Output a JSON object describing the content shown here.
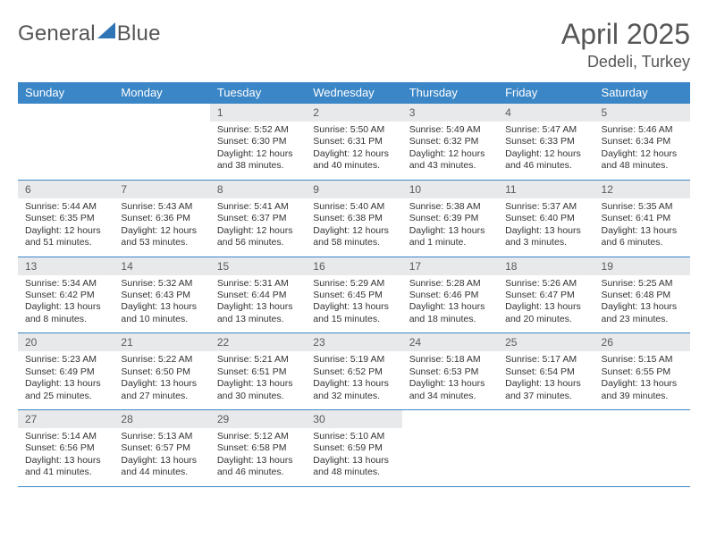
{
  "brand": {
    "name_part1": "General",
    "name_part2": "Blue",
    "mark_color": "#2f74b5"
  },
  "title": {
    "month_year": "April 2025",
    "location": "Dedeli, Turkey"
  },
  "header_bg": "#3b86c6",
  "dayhead_bg": "#e8e9ea",
  "row_border": "#3b86c6",
  "weekdays": [
    "Sunday",
    "Monday",
    "Tuesday",
    "Wednesday",
    "Thursday",
    "Friday",
    "Saturday"
  ],
  "weeks": [
    [
      {
        "n": "",
        "sunrise": "",
        "sunset": "",
        "daylight": ""
      },
      {
        "n": "",
        "sunrise": "",
        "sunset": "",
        "daylight": ""
      },
      {
        "n": "1",
        "sunrise": "Sunrise: 5:52 AM",
        "sunset": "Sunset: 6:30 PM",
        "daylight": "Daylight: 12 hours and 38 minutes."
      },
      {
        "n": "2",
        "sunrise": "Sunrise: 5:50 AM",
        "sunset": "Sunset: 6:31 PM",
        "daylight": "Daylight: 12 hours and 40 minutes."
      },
      {
        "n": "3",
        "sunrise": "Sunrise: 5:49 AM",
        "sunset": "Sunset: 6:32 PM",
        "daylight": "Daylight: 12 hours and 43 minutes."
      },
      {
        "n": "4",
        "sunrise": "Sunrise: 5:47 AM",
        "sunset": "Sunset: 6:33 PM",
        "daylight": "Daylight: 12 hours and 46 minutes."
      },
      {
        "n": "5",
        "sunrise": "Sunrise: 5:46 AM",
        "sunset": "Sunset: 6:34 PM",
        "daylight": "Daylight: 12 hours and 48 minutes."
      }
    ],
    [
      {
        "n": "6",
        "sunrise": "Sunrise: 5:44 AM",
        "sunset": "Sunset: 6:35 PM",
        "daylight": "Daylight: 12 hours and 51 minutes."
      },
      {
        "n": "7",
        "sunrise": "Sunrise: 5:43 AM",
        "sunset": "Sunset: 6:36 PM",
        "daylight": "Daylight: 12 hours and 53 minutes."
      },
      {
        "n": "8",
        "sunrise": "Sunrise: 5:41 AM",
        "sunset": "Sunset: 6:37 PM",
        "daylight": "Daylight: 12 hours and 56 minutes."
      },
      {
        "n": "9",
        "sunrise": "Sunrise: 5:40 AM",
        "sunset": "Sunset: 6:38 PM",
        "daylight": "Daylight: 12 hours and 58 minutes."
      },
      {
        "n": "10",
        "sunrise": "Sunrise: 5:38 AM",
        "sunset": "Sunset: 6:39 PM",
        "daylight": "Daylight: 13 hours and 1 minute."
      },
      {
        "n": "11",
        "sunrise": "Sunrise: 5:37 AM",
        "sunset": "Sunset: 6:40 PM",
        "daylight": "Daylight: 13 hours and 3 minutes."
      },
      {
        "n": "12",
        "sunrise": "Sunrise: 5:35 AM",
        "sunset": "Sunset: 6:41 PM",
        "daylight": "Daylight: 13 hours and 6 minutes."
      }
    ],
    [
      {
        "n": "13",
        "sunrise": "Sunrise: 5:34 AM",
        "sunset": "Sunset: 6:42 PM",
        "daylight": "Daylight: 13 hours and 8 minutes."
      },
      {
        "n": "14",
        "sunrise": "Sunrise: 5:32 AM",
        "sunset": "Sunset: 6:43 PM",
        "daylight": "Daylight: 13 hours and 10 minutes."
      },
      {
        "n": "15",
        "sunrise": "Sunrise: 5:31 AM",
        "sunset": "Sunset: 6:44 PM",
        "daylight": "Daylight: 13 hours and 13 minutes."
      },
      {
        "n": "16",
        "sunrise": "Sunrise: 5:29 AM",
        "sunset": "Sunset: 6:45 PM",
        "daylight": "Daylight: 13 hours and 15 minutes."
      },
      {
        "n": "17",
        "sunrise": "Sunrise: 5:28 AM",
        "sunset": "Sunset: 6:46 PM",
        "daylight": "Daylight: 13 hours and 18 minutes."
      },
      {
        "n": "18",
        "sunrise": "Sunrise: 5:26 AM",
        "sunset": "Sunset: 6:47 PM",
        "daylight": "Daylight: 13 hours and 20 minutes."
      },
      {
        "n": "19",
        "sunrise": "Sunrise: 5:25 AM",
        "sunset": "Sunset: 6:48 PM",
        "daylight": "Daylight: 13 hours and 23 minutes."
      }
    ],
    [
      {
        "n": "20",
        "sunrise": "Sunrise: 5:23 AM",
        "sunset": "Sunset: 6:49 PM",
        "daylight": "Daylight: 13 hours and 25 minutes."
      },
      {
        "n": "21",
        "sunrise": "Sunrise: 5:22 AM",
        "sunset": "Sunset: 6:50 PM",
        "daylight": "Daylight: 13 hours and 27 minutes."
      },
      {
        "n": "22",
        "sunrise": "Sunrise: 5:21 AM",
        "sunset": "Sunset: 6:51 PM",
        "daylight": "Daylight: 13 hours and 30 minutes."
      },
      {
        "n": "23",
        "sunrise": "Sunrise: 5:19 AM",
        "sunset": "Sunset: 6:52 PM",
        "daylight": "Daylight: 13 hours and 32 minutes."
      },
      {
        "n": "24",
        "sunrise": "Sunrise: 5:18 AM",
        "sunset": "Sunset: 6:53 PM",
        "daylight": "Daylight: 13 hours and 34 minutes."
      },
      {
        "n": "25",
        "sunrise": "Sunrise: 5:17 AM",
        "sunset": "Sunset: 6:54 PM",
        "daylight": "Daylight: 13 hours and 37 minutes."
      },
      {
        "n": "26",
        "sunrise": "Sunrise: 5:15 AM",
        "sunset": "Sunset: 6:55 PM",
        "daylight": "Daylight: 13 hours and 39 minutes."
      }
    ],
    [
      {
        "n": "27",
        "sunrise": "Sunrise: 5:14 AM",
        "sunset": "Sunset: 6:56 PM",
        "daylight": "Daylight: 13 hours and 41 minutes."
      },
      {
        "n": "28",
        "sunrise": "Sunrise: 5:13 AM",
        "sunset": "Sunset: 6:57 PM",
        "daylight": "Daylight: 13 hours and 44 minutes."
      },
      {
        "n": "29",
        "sunrise": "Sunrise: 5:12 AM",
        "sunset": "Sunset: 6:58 PM",
        "daylight": "Daylight: 13 hours and 46 minutes."
      },
      {
        "n": "30",
        "sunrise": "Sunrise: 5:10 AM",
        "sunset": "Sunset: 6:59 PM",
        "daylight": "Daylight: 13 hours and 48 minutes."
      },
      {
        "n": "",
        "sunrise": "",
        "sunset": "",
        "daylight": ""
      },
      {
        "n": "",
        "sunrise": "",
        "sunset": "",
        "daylight": ""
      },
      {
        "n": "",
        "sunrise": "",
        "sunset": "",
        "daylight": ""
      }
    ]
  ]
}
